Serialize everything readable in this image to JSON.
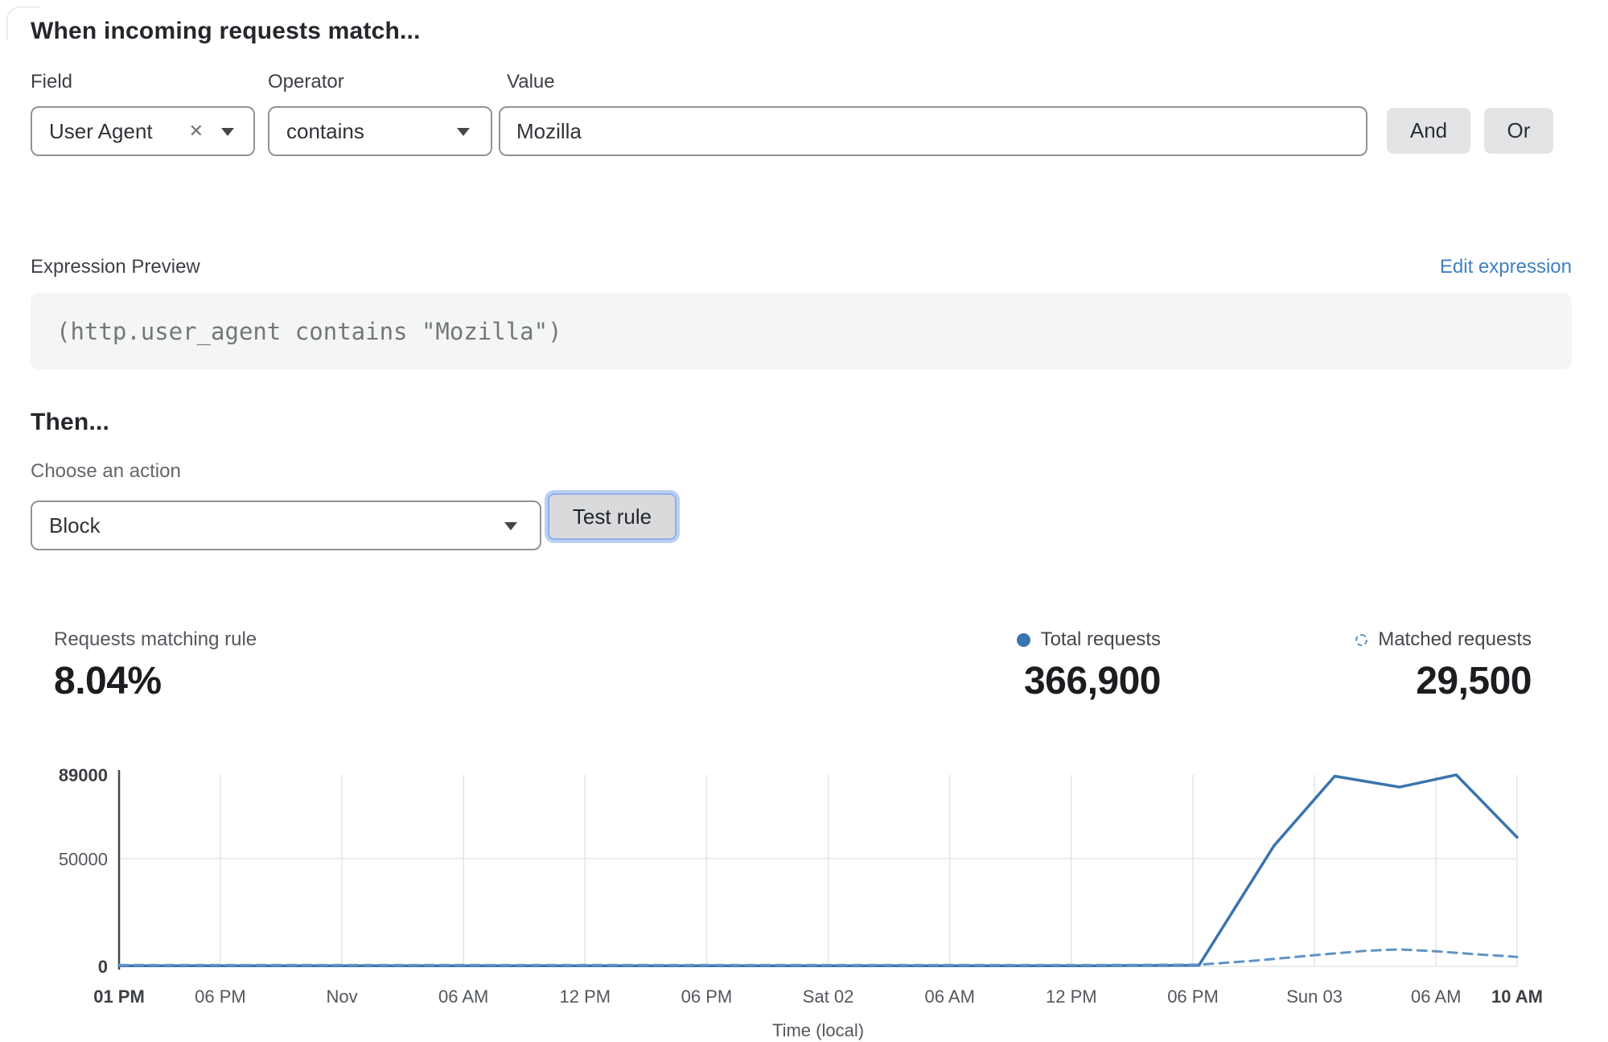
{
  "rule_builder": {
    "heading": "When incoming requests match...",
    "field": {
      "label": "Field",
      "value": "User Agent"
    },
    "operator": {
      "label": "Operator",
      "value": "contains"
    },
    "value": {
      "label": "Value",
      "value": "Mozilla"
    },
    "and_label": "And",
    "or_label": "Or"
  },
  "expression": {
    "label": "Expression Preview",
    "edit_link": "Edit expression",
    "code": "(http.user_agent contains \"Mozilla\")"
  },
  "action": {
    "heading": "Then...",
    "label": "Choose an action",
    "value": "Block",
    "test_button": "Test rule"
  },
  "stats": {
    "matching": {
      "label": "Requests matching rule",
      "value": "8.04%"
    },
    "total": {
      "label": "Total requests",
      "value": "366,900"
    },
    "matched": {
      "label": "Matched requests",
      "value": "29,500"
    }
  },
  "colors": {
    "link_blue": "#4180bf",
    "solid_line_blue": "#3a74ae",
    "dashed_line_blue": "#5f93c6",
    "grid_gray": "#e3e5e7",
    "axis_dark": "#46494d"
  },
  "chart_data": {
    "type": "line",
    "title": "",
    "xlabel": "Time (local)",
    "ylabel": "",
    "ylim": [
      0,
      89000
    ],
    "x_range_hours": [
      0,
      69
    ],
    "grid": true,
    "legend_position": "top-right above chart",
    "y_ticks": [
      {
        "value": 0,
        "label": "0",
        "bold": true
      },
      {
        "value": 50000,
        "label": "50000",
        "bold": false
      },
      {
        "value": 89000,
        "label": "89000",
        "bold": true
      }
    ],
    "x_ticks": [
      {
        "hour": 0,
        "label": "01 PM",
        "bold": true
      },
      {
        "hour": 5,
        "label": "06 PM",
        "bold": false
      },
      {
        "hour": 11,
        "label": "Nov",
        "bold": false
      },
      {
        "hour": 17,
        "label": "06 AM",
        "bold": false
      },
      {
        "hour": 23,
        "label": "12 PM",
        "bold": false
      },
      {
        "hour": 29,
        "label": "06 PM",
        "bold": false
      },
      {
        "hour": 35,
        "label": "Sat 02",
        "bold": false
      },
      {
        "hour": 41,
        "label": "06 AM",
        "bold": false
      },
      {
        "hour": 47,
        "label": "12 PM",
        "bold": false
      },
      {
        "hour": 53,
        "label": "06 PM",
        "bold": false
      },
      {
        "hour": 59,
        "label": "Sun 03",
        "bold": false
      },
      {
        "hour": 65,
        "label": "06 AM",
        "bold": false
      },
      {
        "hour": 69,
        "label": "10 AM",
        "bold": true
      }
    ],
    "series": [
      {
        "name": "Total requests",
        "style": "solid",
        "color": "#3a74ae",
        "points": [
          [
            0,
            300
          ],
          [
            6,
            300
          ],
          [
            12,
            300
          ],
          [
            18,
            300
          ],
          [
            24,
            300
          ],
          [
            30,
            300
          ],
          [
            36,
            300
          ],
          [
            42,
            300
          ],
          [
            48,
            300
          ],
          [
            53.3,
            500
          ],
          [
            57,
            56000
          ],
          [
            60,
            88400
          ],
          [
            63.2,
            83300
          ],
          [
            66,
            89000
          ],
          [
            69,
            60000
          ]
        ]
      },
      {
        "name": "Matched requests",
        "style": "dashed",
        "color": "#5f93c6",
        "points": [
          [
            0,
            600
          ],
          [
            6,
            600
          ],
          [
            12,
            600
          ],
          [
            18,
            600
          ],
          [
            24,
            600
          ],
          [
            30,
            600
          ],
          [
            36,
            600
          ],
          [
            42,
            600
          ],
          [
            48,
            600
          ],
          [
            53.3,
            800
          ],
          [
            56,
            2600
          ],
          [
            59,
            5200
          ],
          [
            61.5,
            7200
          ],
          [
            63.2,
            7900
          ],
          [
            65,
            7000
          ],
          [
            67,
            5600
          ],
          [
            69,
            4400
          ]
        ]
      }
    ]
  }
}
